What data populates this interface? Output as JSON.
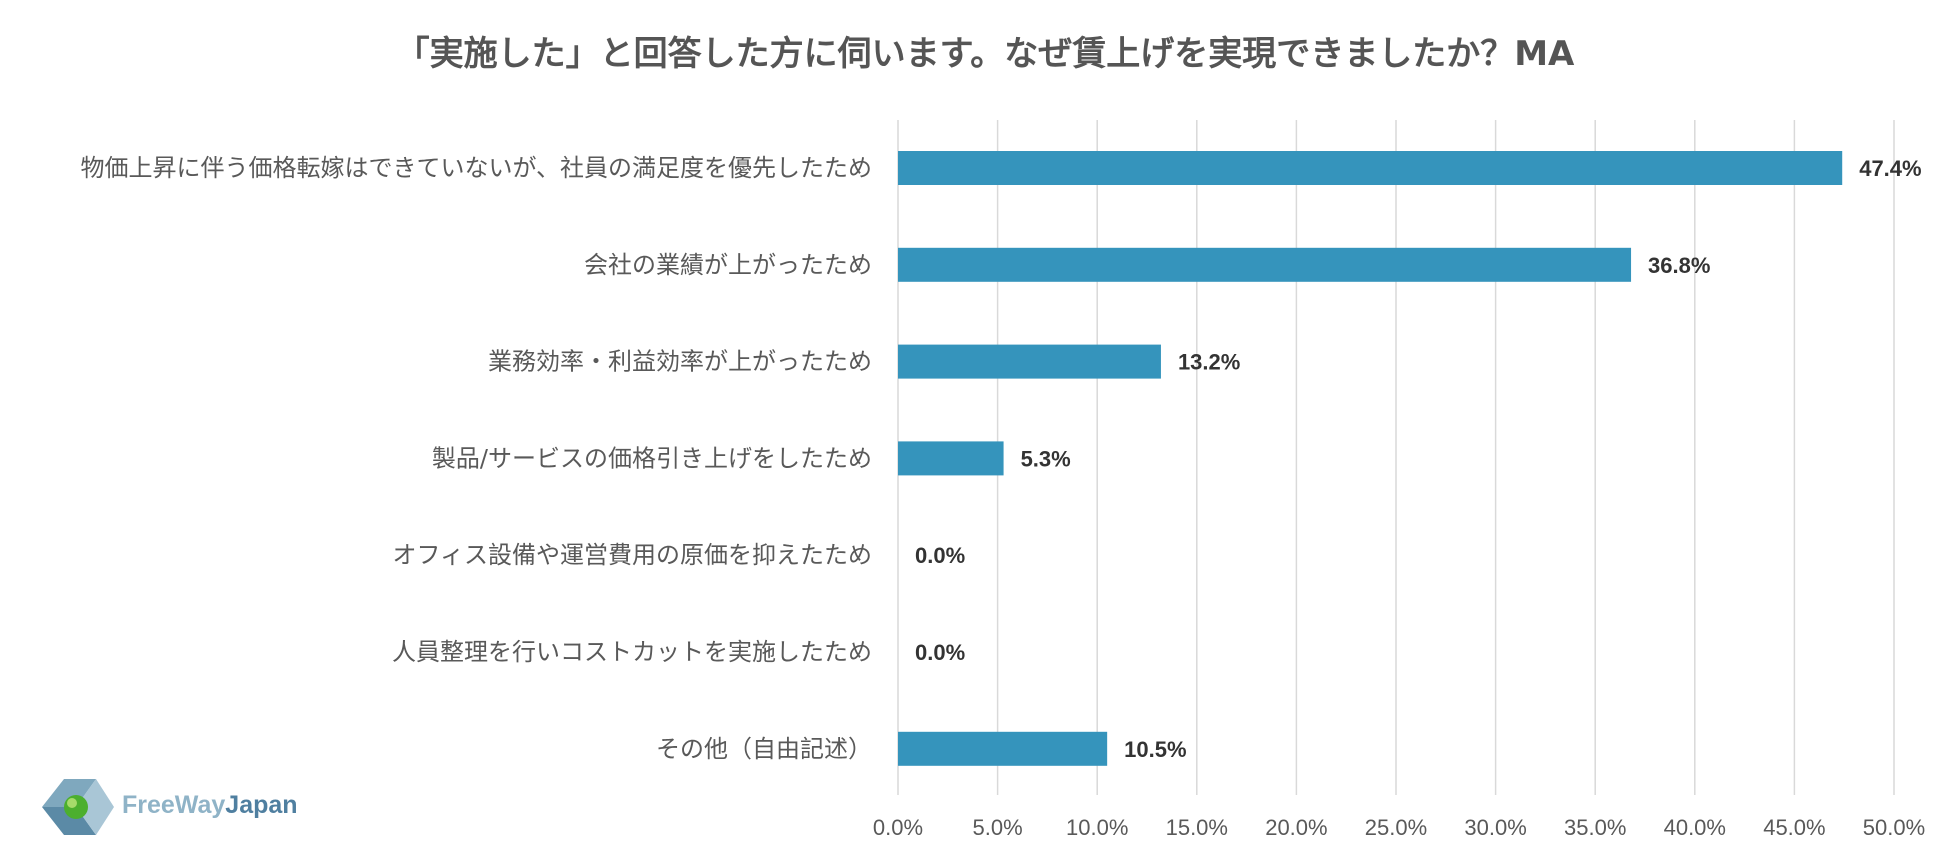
{
  "chart_data": {
    "type": "bar",
    "orientation": "horizontal",
    "title": "「実施した」と回答した方に伺います。なぜ賃上げを実現できましたか？MA",
    "categories": [
      "物価上昇に伴う価格転嫁はできていないが、社員の満足度を優先したため",
      "会社の業績が上がったため",
      "業務効率・利益効率が上がったため",
      "製品/サービスの価格引き上げをしたため",
      "オフィス設備や運営費用の原価を抑えたため",
      "人員整理を行いコストカットを実施したため",
      "その他（自由記述）"
    ],
    "values": [
      47.4,
      36.8,
      13.2,
      5.3,
      0.0,
      0.0,
      10.5
    ],
    "data_labels": [
      "47.4%",
      "36.8%",
      "13.2%",
      "5.3%",
      "0.0%",
      "0.0%",
      "10.5%"
    ],
    "xlim": [
      0,
      50
    ],
    "xticks": [
      0,
      5,
      10,
      15,
      20,
      25,
      30,
      35,
      40,
      45,
      50
    ],
    "xtick_labels": [
      "0.0%",
      "5.0%",
      "10.0%",
      "15.0%",
      "20.0%",
      "25.0%",
      "30.0%",
      "35.0%",
      "40.0%",
      "45.0%",
      "50.0%"
    ],
    "grid": true,
    "xlabel": "",
    "ylabel": ""
  },
  "colors": {
    "bar": "#3594BC",
    "grid": "#D9D9D9",
    "logo_free_way": "#8FB3C7",
    "logo_japan": "#4F7FA0"
  },
  "logo": {
    "part1": "FreeWay",
    "part2": "Japan"
  }
}
